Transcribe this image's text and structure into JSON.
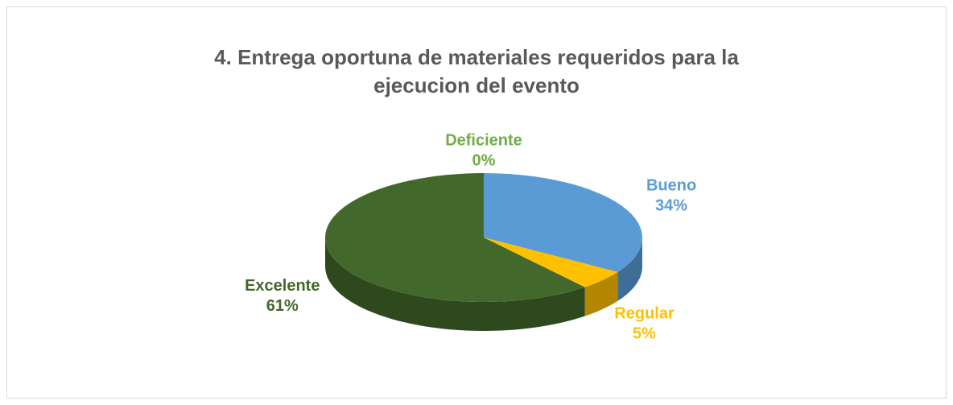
{
  "chart_data": {
    "type": "pie3d",
    "title": [
      "4. Entrega oportuna de materiales requeridos para la",
      "ejecucion del evento"
    ],
    "categories": [
      "Bueno",
      "Regular",
      "Excelente",
      "Deficiente"
    ],
    "values": [
      34,
      5,
      61,
      0
    ],
    "value_labels": [
      "34%",
      "5%",
      "61%",
      "0%"
    ],
    "colors": [
      "#5b9bd5",
      "#ffc000",
      "#43682b",
      "#70ad47"
    ]
  }
}
